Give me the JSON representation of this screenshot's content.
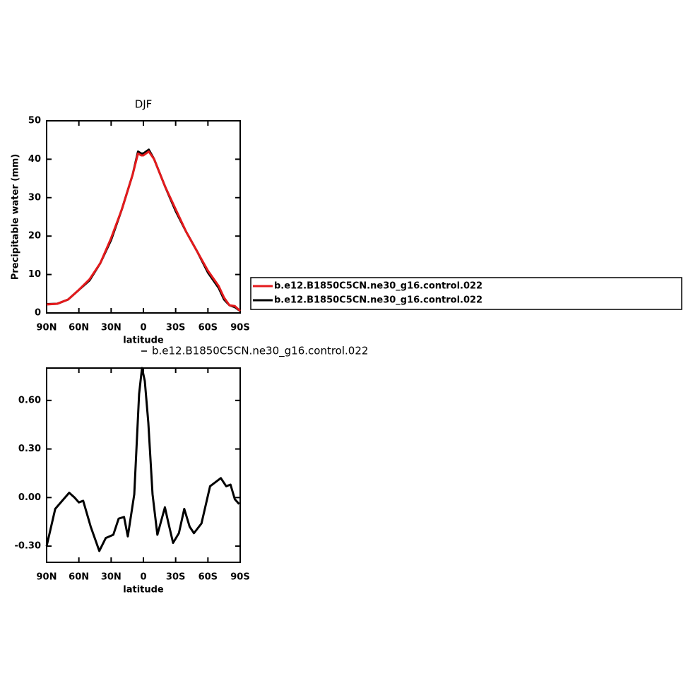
{
  "chart_data": [
    {
      "type": "line",
      "title": "DJF",
      "ylabel": "Precipitable water  (mm)",
      "xlabel": "latitude",
      "x": [
        90,
        80,
        70,
        60,
        50,
        40,
        30,
        20,
        10,
        5,
        2,
        0,
        -5,
        -10,
        -20,
        -30,
        -40,
        -50,
        -60,
        -70,
        -75,
        -80,
        -85,
        -90
      ],
      "series": [
        {
          "name": "b.e12.B1850C5CN.ne30_g16.control.022",
          "color": "#e41a1c",
          "values": [
            2.2,
            2.4,
            3.5,
            6,
            8.8,
            13,
            19.5,
            27,
            36,
            41.5,
            41,
            41,
            42,
            40,
            33,
            27,
            21,
            16,
            11,
            7,
            4,
            2,
            1.8,
            0.5
          ]
        },
        {
          "name": "b.e12.B1850C5CN.ne30_g16.control.022",
          "color": "#000000",
          "values": [
            2.3,
            2.4,
            3.5,
            6,
            8.5,
            13,
            19,
            27,
            36,
            42,
            41.5,
            41.5,
            42.5,
            40,
            33,
            26.5,
            21,
            16,
            10.5,
            6.5,
            3.5,
            2,
            1.5,
            0.5
          ]
        }
      ],
      "xlim": [
        90,
        -90
      ],
      "xticks": [
        {
          "value": 90,
          "label": "90N"
        },
        {
          "value": 60,
          "label": "60N"
        },
        {
          "value": 30,
          "label": "30N"
        },
        0,
        {
          "value": -30,
          "label": "30S"
        },
        {
          "value": -60,
          "label": "60S"
        },
        {
          "value": -90,
          "label": "90S"
        }
      ],
      "ylim": [
        0,
        50
      ],
      "yticks": [
        0,
        10,
        20,
        30,
        40,
        50
      ],
      "legend": "right"
    },
    {
      "type": "line",
      "xlabel": "latitude",
      "x": [
        90,
        82,
        75.5,
        69,
        64,
        60,
        56,
        49,
        41,
        35,
        28,
        23,
        18,
        14.5,
        8.5,
        4,
        1.3,
        -1.3,
        -4.6,
        -8.5,
        -13,
        -20,
        -23,
        -27.6,
        -33,
        -38,
        -43,
        -47,
        -54,
        -62,
        -68,
        -72,
        -77,
        -81,
        -85,
        -89
      ],
      "series": [
        {
          "name": "b.e12.B1850C5CN.ne30_g16.control.022",
          "color": "#000000",
          "values": [
            -0.3,
            -0.07,
            -0.02,
            0.03,
            0,
            -0.03,
            -0.02,
            -0.18,
            -0.33,
            -0.25,
            -0.23,
            -0.13,
            -0.12,
            -0.24,
            0.02,
            0.64,
            0.8,
            0.72,
            0.46,
            0.02,
            -0.23,
            -0.06,
            -0.15,
            -0.28,
            -0.22,
            -0.07,
            -0.18,
            -0.22,
            -0.16,
            0.07,
            0.1,
            0.12,
            0.07,
            0.08,
            -0.01,
            -0.04
          ]
        }
      ],
      "xlim": [
        90,
        -90
      ],
      "xticks": [
        {
          "value": 90,
          "label": "90N"
        },
        {
          "value": 60,
          "label": "60N"
        },
        {
          "value": 30,
          "label": "30N"
        },
        0,
        {
          "value": -30,
          "label": "30S"
        },
        {
          "value": -60,
          "label": "60S"
        },
        {
          "value": -90,
          "label": "90S"
        }
      ],
      "ylim": [
        -0.4,
        0.8
      ],
      "yticks": [
        {
          "value": -0.3,
          "label": "-0.30"
        },
        {
          "value": 0,
          "label": "0.00"
        },
        {
          "value": 0.3,
          "label": "0.30"
        },
        {
          "value": 0.6,
          "label": "0.60"
        }
      ],
      "legend": "top"
    }
  ]
}
